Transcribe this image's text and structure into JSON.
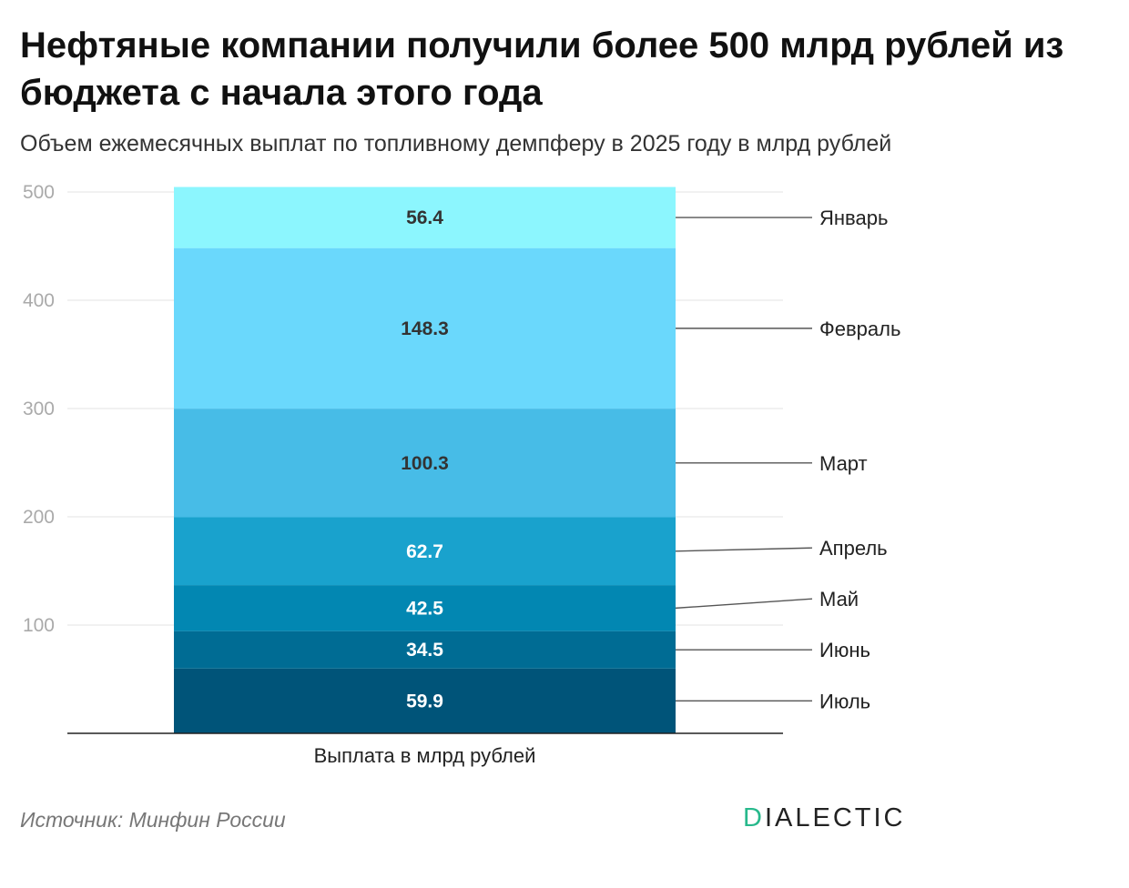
{
  "title": "Нефтяные компании получили более 500 млрд рублей из бюджета с начала этого года",
  "subtitle": "Объем ежемесячных выплат по топливному демпферу в 2025 году в млрд рублей",
  "source": "Источник: Минфин России",
  "logo": {
    "first": "D",
    "rest": "IALECTIC"
  },
  "chart_data": {
    "type": "bar",
    "stacked": true,
    "categories": [
      "Выплата в млрд рублей"
    ],
    "ylim": [
      0,
      500
    ],
    "yticks": [
      100,
      200,
      300,
      400,
      500
    ],
    "grid": true,
    "legend_position": "right",
    "series": [
      {
        "name": "Июль",
        "values": [
          59.9
        ],
        "color": "#005479",
        "label_color": "#ffffff"
      },
      {
        "name": "Июнь",
        "values": [
          34.5
        ],
        "color": "#006c94",
        "label_color": "#ffffff"
      },
      {
        "name": "Май",
        "values": [
          42.5
        ],
        "color": "#0287b2",
        "label_color": "#ffffff"
      },
      {
        "name": "Апрель",
        "values": [
          62.7
        ],
        "color": "#19a2cd",
        "label_color": "#ffffff"
      },
      {
        "name": "Март",
        "values": [
          100.3
        ],
        "color": "#47bce7",
        "label_color": "#333333"
      },
      {
        "name": "Февраль",
        "values": [
          148.3
        ],
        "color": "#6ad8fc",
        "label_color": "#333333"
      },
      {
        "name": "Январь",
        "values": [
          56.4
        ],
        "color": "#8cf6fe",
        "label_color": "#333333"
      }
    ]
  }
}
